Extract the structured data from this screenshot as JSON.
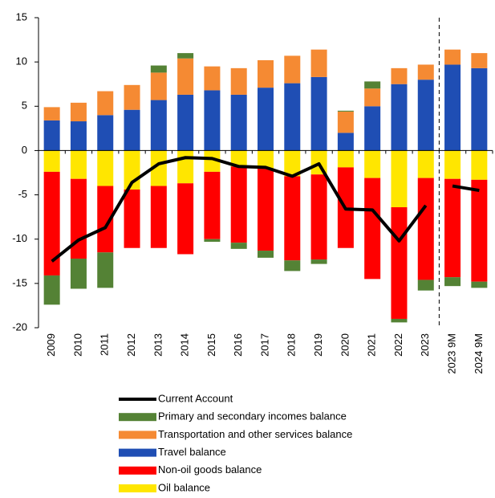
{
  "chart_data": {
    "type": "bar",
    "categories": [
      "2009",
      "2010",
      "2011",
      "2012",
      "2013",
      "2014",
      "2015",
      "2016",
      "2017",
      "2018",
      "2019",
      "2020",
      "2021",
      "2022",
      "2023",
      "2023 9M",
      "2024 9M"
    ],
    "series": [
      {
        "name": "Oil balance",
        "color": "#ffe600",
        "values": [
          -2.4,
          -3.2,
          -4.0,
          -4.4,
          -4.0,
          -3.7,
          -2.4,
          -1.8,
          -2.0,
          -2.9,
          -2.7,
          -1.9,
          -3.1,
          -6.4,
          -3.1,
          -3.2,
          -3.3
        ]
      },
      {
        "name": "Non-oil goods balance",
        "color": "#ff0000",
        "values": [
          -11.7,
          -9.0,
          -7.5,
          -6.6,
          -7.0,
          -8.0,
          -7.6,
          -8.6,
          -9.3,
          -9.5,
          -9.6,
          -9.1,
          -11.4,
          -12.6,
          -11.5,
          -11.1,
          -11.5
        ]
      },
      {
        "name": "Travel balance",
        "color": "#1f4eb4",
        "values": [
          3.4,
          3.3,
          4.0,
          4.6,
          5.7,
          6.3,
          6.8,
          6.3,
          7.1,
          7.6,
          8.3,
          2.0,
          5.0,
          7.5,
          8.0,
          9.7,
          9.3
        ]
      },
      {
        "name": "Transportation and other services balance",
        "color": "#f58a33",
        "values": [
          1.5,
          2.1,
          2.7,
          2.8,
          3.1,
          4.1,
          2.7,
          3.0,
          3.1,
          3.1,
          3.1,
          2.4,
          2.0,
          1.8,
          1.7,
          1.7,
          1.7
        ]
      },
      {
        "name": "Primary and secondary incomes balance",
        "color": "#548235",
        "values": [
          -3.3,
          -3.4,
          -4.0,
          0,
          0.8,
          0.6,
          -0.3,
          -0.7,
          -0.8,
          -1.2,
          -0.5,
          0.1,
          0.8,
          -0.4,
          -1.2,
          -1.0,
          -0.7
        ]
      },
      {
        "name": "Current Account",
        "color": "#000000",
        "type": "line",
        "values": [
          -12.5,
          -10.1,
          -8.7,
          -3.6,
          -1.5,
          -0.8,
          -0.9,
          -1.8,
          -1.9,
          -2.9,
          -1.5,
          -6.6,
          -6.7,
          -10.2,
          -6.2,
          -4.0,
          -4.5
        ]
      }
    ],
    "ylim": [
      -20,
      15
    ],
    "yticks": [
      -20,
      -15,
      -10,
      -5,
      0,
      5,
      10,
      15
    ],
    "divider_after": 14
  }
}
